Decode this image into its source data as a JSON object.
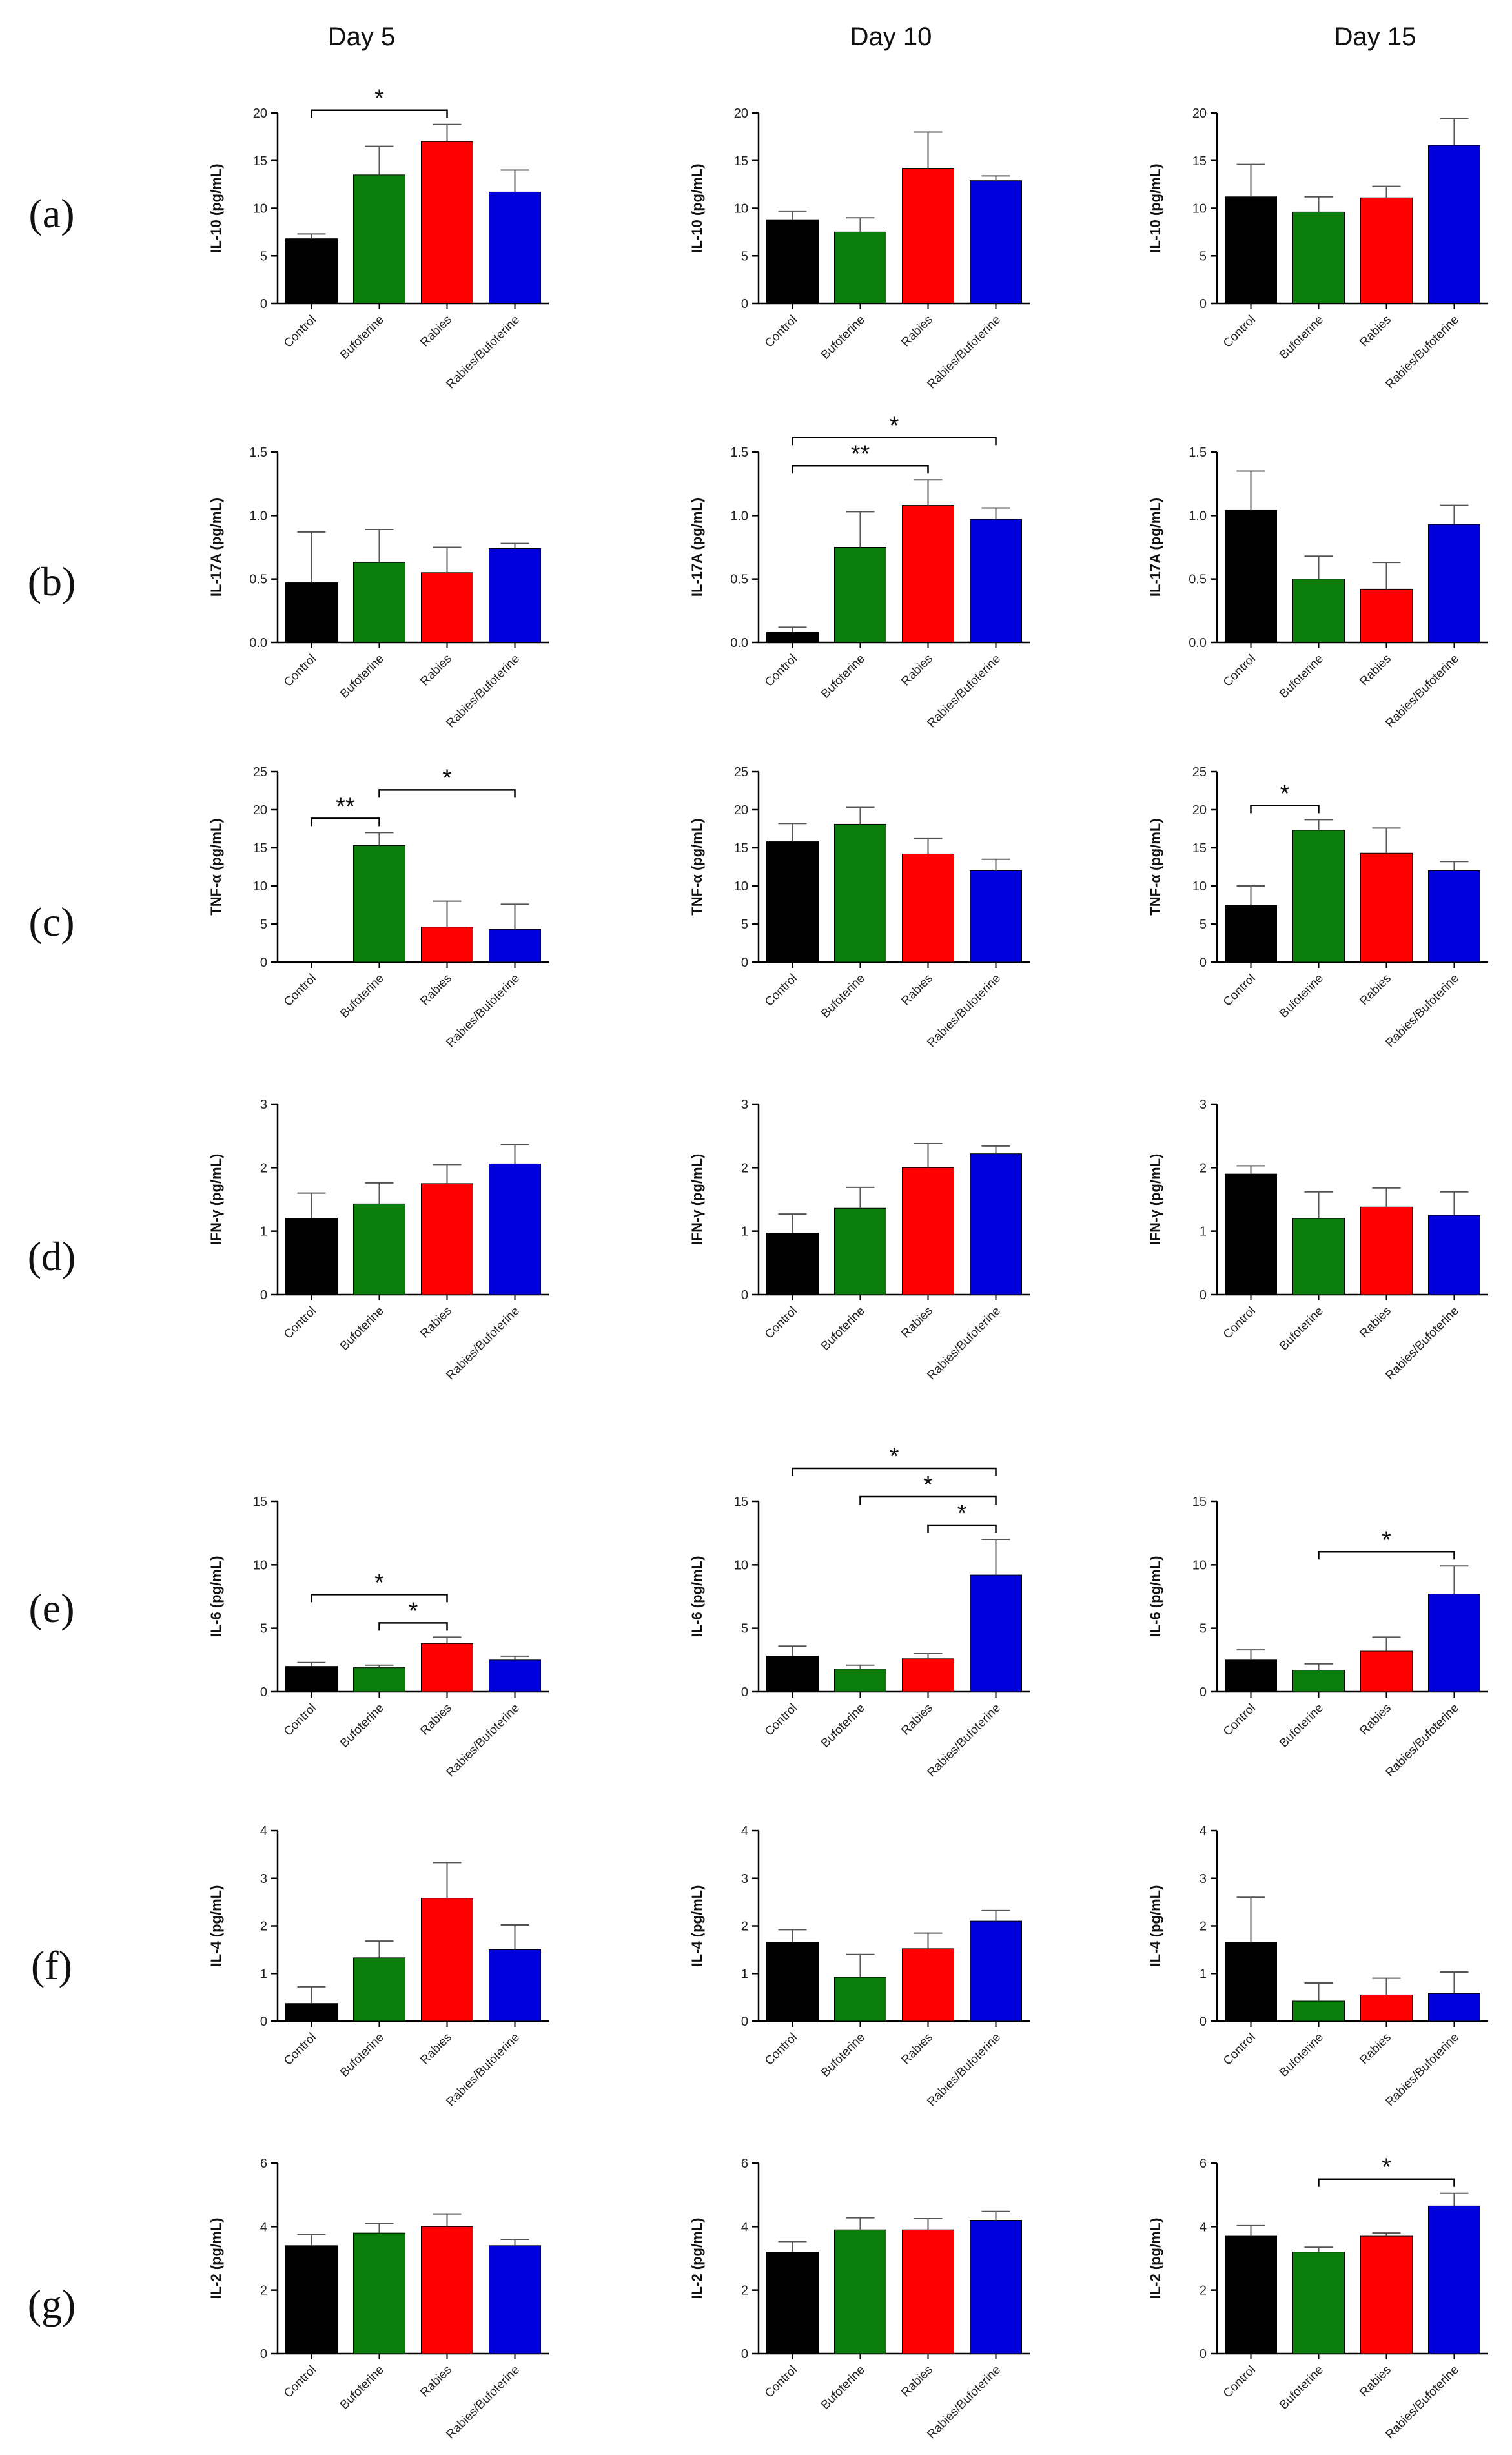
{
  "columns": [
    "Day 5",
    "Day 10",
    "Day 15"
  ],
  "rows": [
    "(a)",
    "(b)",
    "(c)",
    "(d)",
    "(e)",
    "(f)",
    "(g)"
  ],
  "categories": [
    "Control",
    "Bufoterine",
    "Rabies",
    "Rabies/Bufoterine"
  ],
  "colors": [
    "#000000",
    "#0a7d0a",
    "#ff0000",
    "#0000dd"
  ],
  "chart_data": [
    {
      "type": "bar",
      "row": "(a)",
      "column": "Day 5",
      "ylabel": "IL-10 (pg/mL)",
      "ylim": [
        0,
        20
      ],
      "yticks": [
        0,
        5,
        10,
        15,
        20
      ],
      "yticklabels": [
        "0",
        "5",
        "10",
        "15",
        "20"
      ],
      "values": [
        6.8,
        13.5,
        17.0,
        11.7
      ],
      "errors": [
        0.5,
        3.0,
        1.8,
        2.3
      ],
      "significance": [
        {
          "from": 0,
          "to": 2,
          "label": "*"
        }
      ]
    },
    {
      "type": "bar",
      "row": "(a)",
      "column": "Day 10",
      "ylabel": "IL-10 (pg/mL)",
      "ylim": [
        0,
        20
      ],
      "yticks": [
        0,
        5,
        10,
        15,
        20
      ],
      "yticklabels": [
        "0",
        "5",
        "10",
        "15",
        "20"
      ],
      "values": [
        8.8,
        7.5,
        14.2,
        12.9
      ],
      "errors": [
        0.9,
        1.5,
        3.8,
        0.5
      ],
      "significance": []
    },
    {
      "type": "bar",
      "row": "(a)",
      "column": "Day 15",
      "ylabel": "IL-10 (pg/mL)",
      "ylim": [
        0,
        20
      ],
      "yticks": [
        0,
        5,
        10,
        15,
        20
      ],
      "yticklabels": [
        "0",
        "5",
        "10",
        "15",
        "20"
      ],
      "values": [
        11.2,
        9.6,
        11.1,
        16.6
      ],
      "errors": [
        3.4,
        1.6,
        1.2,
        2.8
      ],
      "significance": []
    },
    {
      "type": "bar",
      "row": "(b)",
      "column": "Day 5",
      "ylabel": "IL-17A (pg/mL)",
      "ylim": [
        0,
        1.5
      ],
      "yticks": [
        0,
        0.5,
        1,
        1.5
      ],
      "yticklabels": [
        "0.0",
        "0.5",
        "1.0",
        "1.5"
      ],
      "values": [
        0.47,
        0.63,
        0.55,
        0.74
      ],
      "errors": [
        0.4,
        0.26,
        0.2,
        0.04
      ],
      "significance": []
    },
    {
      "type": "bar",
      "row": "(b)",
      "column": "Day 10",
      "ylabel": "IL-17A (pg/mL)",
      "ylim": [
        0,
        1.5
      ],
      "yticks": [
        0,
        0.5,
        1,
        1.5
      ],
      "yticklabels": [
        "0.0",
        "0.5",
        "1.0",
        "1.5"
      ],
      "values": [
        0.08,
        0.75,
        1.08,
        0.97
      ],
      "errors": [
        0.04,
        0.28,
        0.2,
        0.09
      ],
      "significance": [
        {
          "from": 0,
          "to": 2,
          "label": "**"
        },
        {
          "from": 0,
          "to": 3,
          "label": "*"
        }
      ]
    },
    {
      "type": "bar",
      "row": "(b)",
      "column": "Day 15",
      "ylabel": "IL-17A (pg/mL)",
      "ylim": [
        0,
        1.5
      ],
      "yticks": [
        0,
        0.5,
        1,
        1.5
      ],
      "yticklabels": [
        "0.0",
        "0.5",
        "1.0",
        "1.5"
      ],
      "values": [
        1.04,
        0.5,
        0.42,
        0.93
      ],
      "errors": [
        0.31,
        0.18,
        0.21,
        0.15
      ],
      "significance": []
    },
    {
      "type": "bar",
      "row": "(c)",
      "column": "Day 5",
      "ylabel": "TNF-α (pg/mL)",
      "ylim": [
        0,
        25
      ],
      "yticks": [
        0,
        5,
        10,
        15,
        20,
        25
      ],
      "yticklabels": [
        "0",
        "5",
        "10",
        "15",
        "20",
        "25"
      ],
      "values": [
        0,
        15.3,
        4.6,
        4.3
      ],
      "errors": [
        0,
        1.7,
        3.4,
        3.3
      ],
      "significance": [
        {
          "from": 0,
          "to": 1,
          "label": "**"
        },
        {
          "from": 1,
          "to": 3,
          "label": "*"
        }
      ]
    },
    {
      "type": "bar",
      "row": "(c)",
      "column": "Day 10",
      "ylabel": "TNF-α (pg/mL)",
      "ylim": [
        0,
        25
      ],
      "yticks": [
        0,
        5,
        10,
        15,
        20,
        25
      ],
      "yticklabels": [
        "0",
        "5",
        "10",
        "15",
        "20",
        "25"
      ],
      "values": [
        15.8,
        18.1,
        14.2,
        12.0
      ],
      "errors": [
        2.4,
        2.2,
        2.0,
        1.5
      ],
      "significance": []
    },
    {
      "type": "bar",
      "row": "(c)",
      "column": "Day 15",
      "ylabel": "TNF-α (pg/mL)",
      "ylim": [
        0,
        25
      ],
      "yticks": [
        0,
        5,
        10,
        15,
        20,
        25
      ],
      "yticklabels": [
        "0",
        "5",
        "10",
        "15",
        "20",
        "25"
      ],
      "values": [
        7.5,
        17.3,
        14.3,
        12.0
      ],
      "errors": [
        2.5,
        1.4,
        3.3,
        1.2
      ],
      "significance": [
        {
          "from": 0,
          "to": 1,
          "label": "*"
        }
      ]
    },
    {
      "type": "bar",
      "row": "(d)",
      "column": "Day 5",
      "ylabel": "IFN-γ (pg/mL)",
      "ylim": [
        0,
        3
      ],
      "yticks": [
        0,
        1,
        2,
        3
      ],
      "yticklabels": [
        "0",
        "1",
        "2",
        "3"
      ],
      "values": [
        1.2,
        1.43,
        1.75,
        2.06
      ],
      "errors": [
        0.4,
        0.33,
        0.3,
        0.3
      ],
      "significance": []
    },
    {
      "type": "bar",
      "row": "(d)",
      "column": "Day 10",
      "ylabel": "IFN-γ (pg/mL)",
      "ylim": [
        0,
        3
      ],
      "yticks": [
        0,
        1,
        2,
        3
      ],
      "yticklabels": [
        "0",
        "1",
        "2",
        "3"
      ],
      "values": [
        0.97,
        1.36,
        2.0,
        2.22
      ],
      "errors": [
        0.3,
        0.33,
        0.38,
        0.12
      ],
      "significance": []
    },
    {
      "type": "bar",
      "row": "(d)",
      "column": "Day 15",
      "ylabel": "IFN-γ (pg/mL)",
      "ylim": [
        0,
        3
      ],
      "yticks": [
        0,
        1,
        2,
        3
      ],
      "yticklabels": [
        "0",
        "1",
        "2",
        "3"
      ],
      "values": [
        1.9,
        1.2,
        1.38,
        1.25
      ],
      "errors": [
        0.13,
        0.42,
        0.3,
        0.37
      ],
      "significance": []
    },
    {
      "type": "bar",
      "row": "(e)",
      "column": "Day 5",
      "ylabel": "IL-6 (pg/mL)",
      "ylim": [
        0,
        15
      ],
      "yticks": [
        0,
        5,
        10,
        15
      ],
      "yticklabels": [
        "0",
        "5",
        "10",
        "15"
      ],
      "values": [
        2.0,
        1.9,
        3.8,
        2.5
      ],
      "errors": [
        0.3,
        0.2,
        0.5,
        0.3
      ],
      "significance": [
        {
          "from": 0,
          "to": 2,
          "label": "*"
        },
        {
          "from": 1,
          "to": 2,
          "label": "*"
        }
      ]
    },
    {
      "type": "bar",
      "row": "(e)",
      "column": "Day 10",
      "ylabel": "IL-6 (pg/mL)",
      "ylim": [
        0,
        15
      ],
      "yticks": [
        0,
        5,
        10,
        15
      ],
      "yticklabels": [
        "0",
        "5",
        "10",
        "15"
      ],
      "values": [
        2.8,
        1.8,
        2.6,
        9.2
      ],
      "errors": [
        0.8,
        0.3,
        0.4,
        2.8
      ],
      "significance": [
        {
          "from": 0,
          "to": 3,
          "label": "*"
        },
        {
          "from": 1,
          "to": 3,
          "label": "*"
        },
        {
          "from": 2,
          "to": 3,
          "label": "*"
        }
      ]
    },
    {
      "type": "bar",
      "row": "(e)",
      "column": "Day 15",
      "ylabel": "IL-6 (pg/mL)",
      "ylim": [
        0,
        15
      ],
      "yticks": [
        0,
        5,
        10,
        15
      ],
      "yticklabels": [
        "0",
        "5",
        "10",
        "15"
      ],
      "values": [
        2.5,
        1.7,
        3.2,
        7.7
      ],
      "errors": [
        0.8,
        0.5,
        1.1,
        2.2
      ],
      "significance": [
        {
          "from": 1,
          "to": 3,
          "label": "*"
        }
      ]
    },
    {
      "type": "bar",
      "row": "(f)",
      "column": "Day 5",
      "ylabel": "IL-4 (pg/mL)",
      "ylim": [
        0,
        4
      ],
      "yticks": [
        0,
        1,
        2,
        3,
        4
      ],
      "yticklabels": [
        "0",
        "1",
        "2",
        "3",
        "4"
      ],
      "values": [
        0.37,
        1.33,
        2.58,
        1.5
      ],
      "errors": [
        0.35,
        0.35,
        0.75,
        0.52
      ],
      "significance": []
    },
    {
      "type": "bar",
      "row": "(f)",
      "column": "Day 10",
      "ylabel": "IL-4 (pg/mL)",
      "ylim": [
        0,
        4
      ],
      "yticks": [
        0,
        1,
        2,
        3,
        4
      ],
      "yticklabels": [
        "0",
        "1",
        "2",
        "3",
        "4"
      ],
      "values": [
        1.65,
        0.92,
        1.52,
        2.1
      ],
      "errors": [
        0.27,
        0.48,
        0.33,
        0.22
      ],
      "significance": []
    },
    {
      "type": "bar",
      "row": "(f)",
      "column": "Day 15",
      "ylabel": "IL-4 (pg/mL)",
      "ylim": [
        0,
        4
      ],
      "yticks": [
        0,
        1,
        2,
        3,
        4
      ],
      "yticklabels": [
        "0",
        "1",
        "2",
        "3",
        "4"
      ],
      "values": [
        1.65,
        0.42,
        0.55,
        0.58
      ],
      "errors": [
        0.95,
        0.38,
        0.35,
        0.45
      ],
      "significance": []
    },
    {
      "type": "bar",
      "row": "(g)",
      "column": "Day 5",
      "ylabel": "IL-2 (pg/mL)",
      "ylim": [
        0,
        6
      ],
      "yticks": [
        0,
        2,
        4,
        6
      ],
      "yticklabels": [
        "0",
        "2",
        "4",
        "6"
      ],
      "values": [
        3.4,
        3.8,
        4.0,
        3.4
      ],
      "errors": [
        0.35,
        0.3,
        0.4,
        0.2
      ],
      "significance": []
    },
    {
      "type": "bar",
      "row": "(g)",
      "column": "Day 10",
      "ylabel": "IL-2 (pg/mL)",
      "ylim": [
        0,
        6
      ],
      "yticks": [
        0,
        2,
        4,
        6
      ],
      "yticklabels": [
        "0",
        "2",
        "4",
        "6"
      ],
      "values": [
        3.2,
        3.9,
        3.9,
        4.2
      ],
      "errors": [
        0.33,
        0.38,
        0.35,
        0.28
      ],
      "significance": []
    },
    {
      "type": "bar",
      "row": "(g)",
      "column": "Day 15",
      "ylabel": "IL-2 (pg/mL)",
      "ylim": [
        0,
        6
      ],
      "yticks": [
        0,
        2,
        4,
        6
      ],
      "yticklabels": [
        "0",
        "2",
        "4",
        "6"
      ],
      "values": [
        3.7,
        3.2,
        3.7,
        4.65
      ],
      "errors": [
        0.33,
        0.15,
        0.1,
        0.4
      ],
      "significance": [
        {
          "from": 1,
          "to": 3,
          "label": "*"
        }
      ]
    }
  ]
}
